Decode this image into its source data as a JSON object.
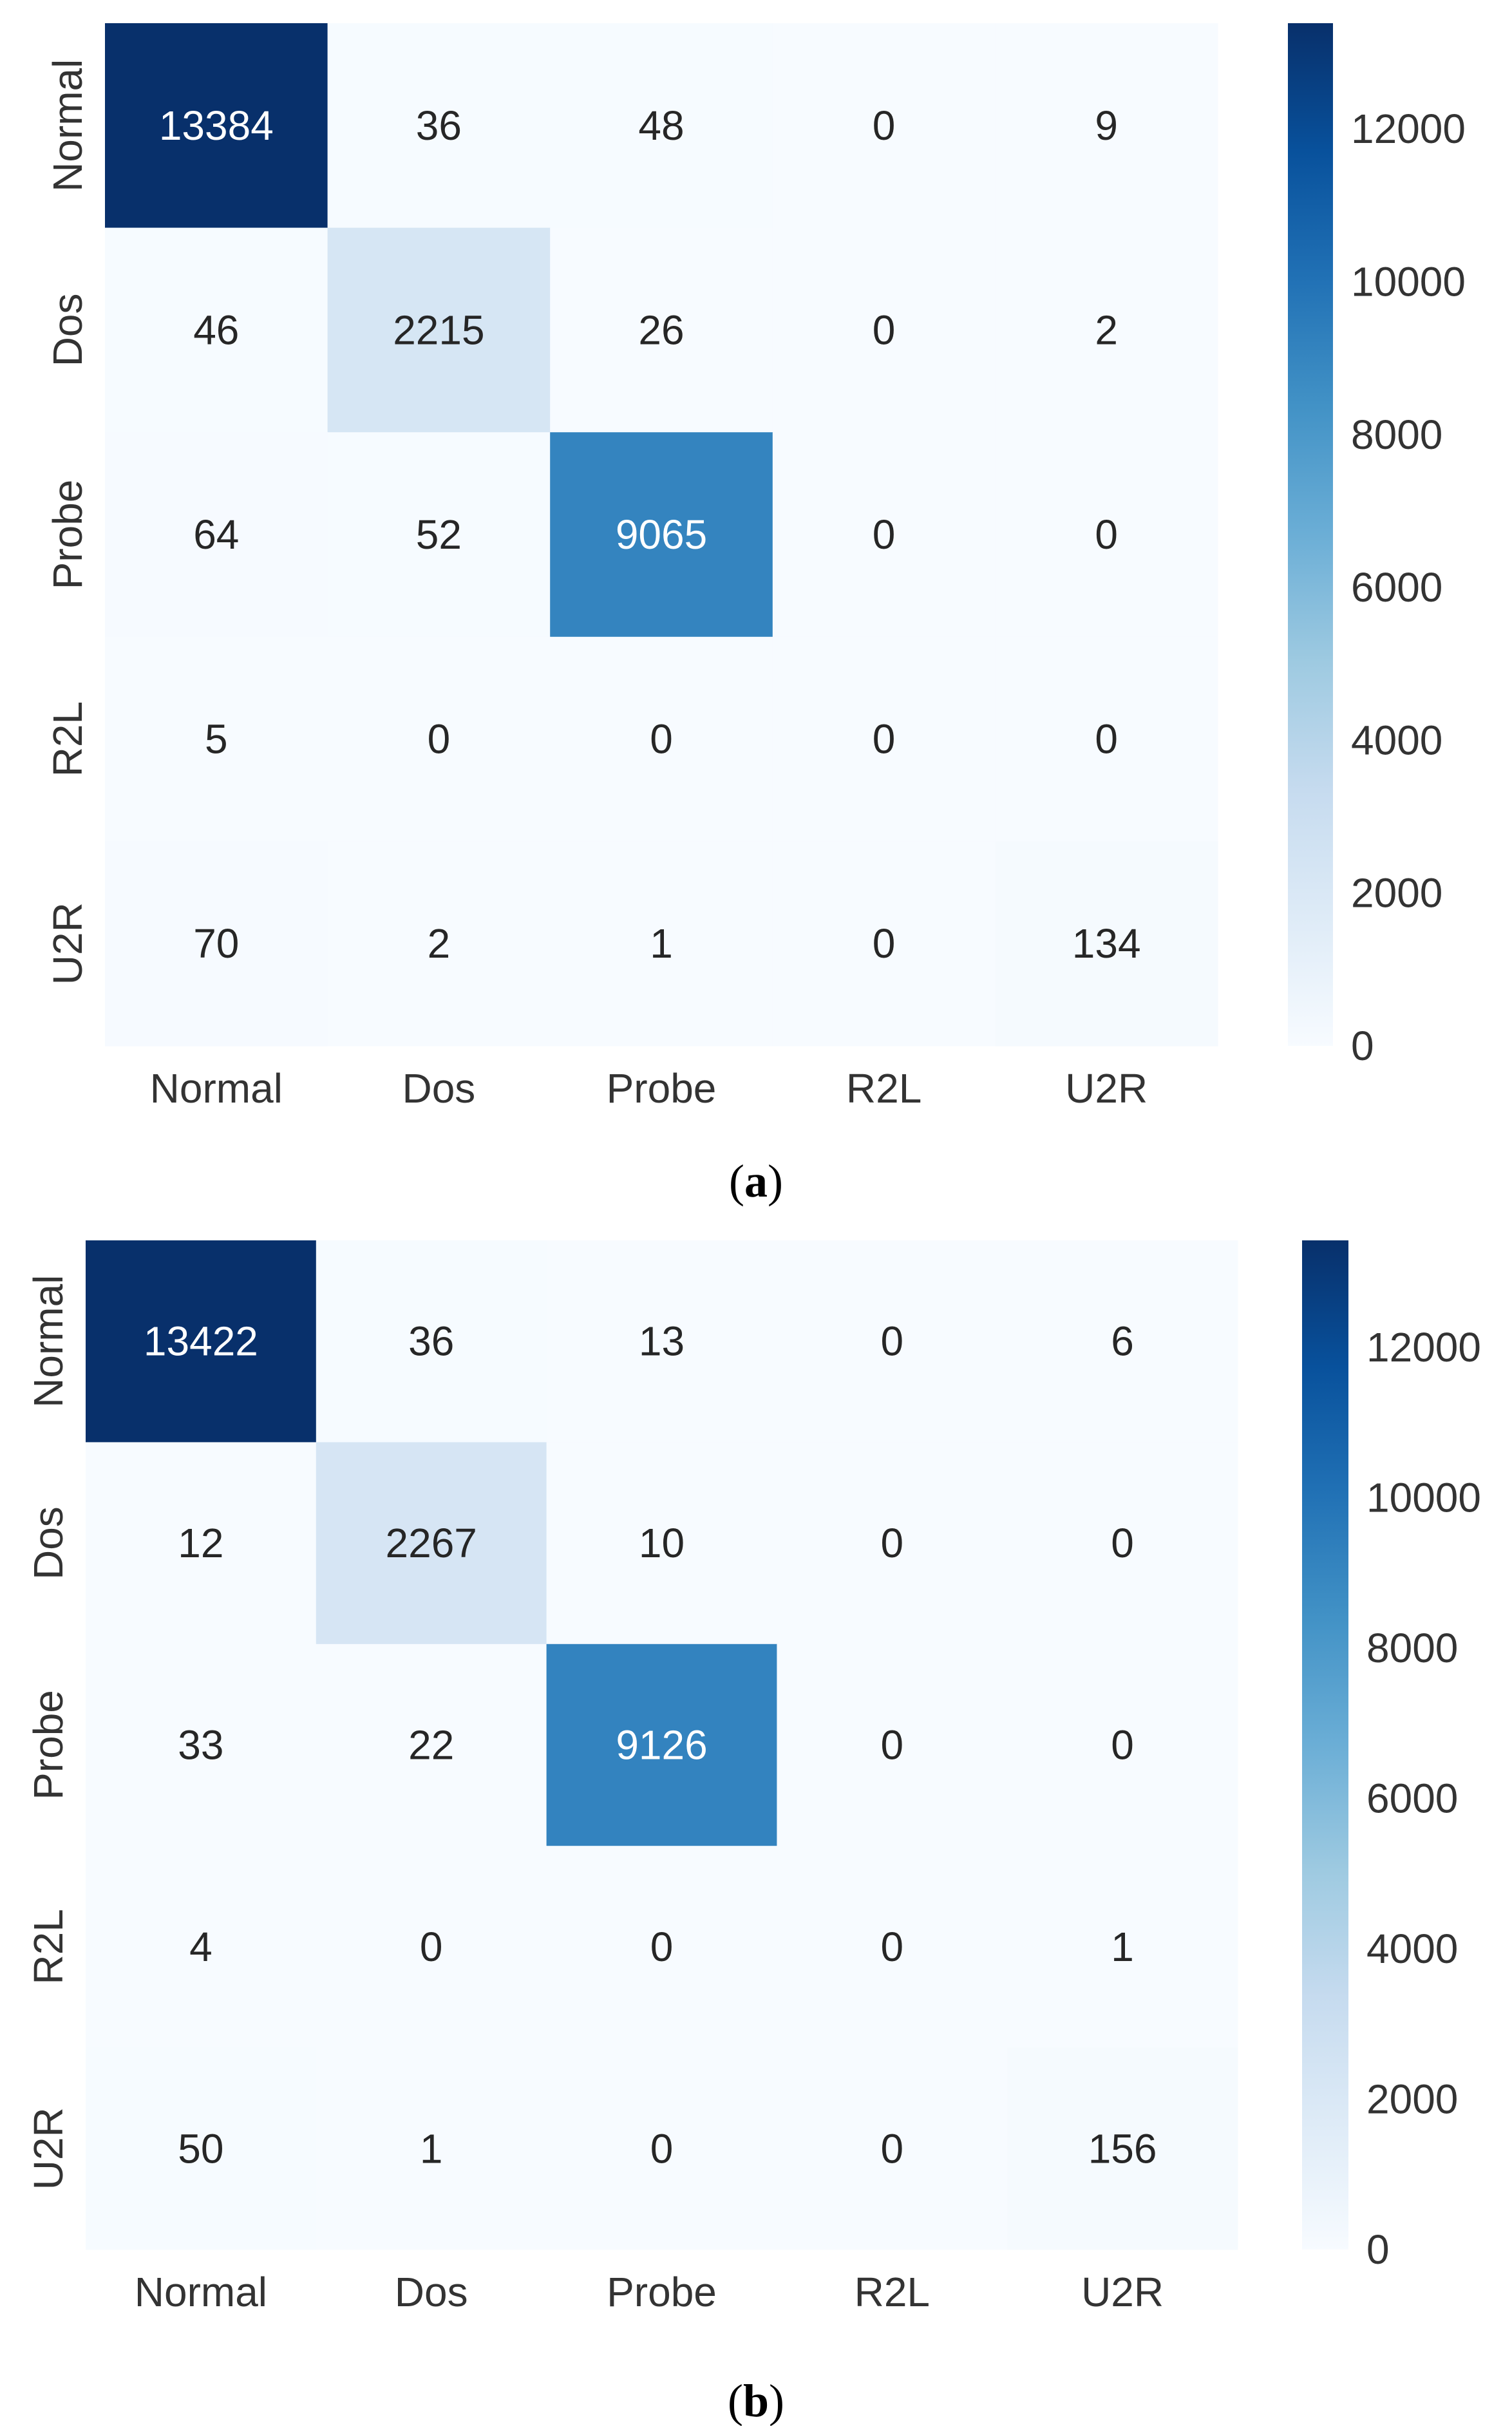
{
  "chart_data": [
    {
      "type": "heatmap",
      "caption_letter": "a",
      "row_labels": [
        "Normal",
        "Dos",
        "Probe",
        "R2L",
        "U2R"
      ],
      "col_labels": [
        "Normal",
        "Dos",
        "Probe",
        "R2L",
        "U2R"
      ],
      "values": [
        [
          13384,
          36,
          48,
          0,
          9
        ],
        [
          46,
          2215,
          26,
          0,
          2
        ],
        [
          64,
          52,
          9065,
          0,
          0
        ],
        [
          5,
          0,
          0,
          0,
          0
        ],
        [
          70,
          2,
          1,
          0,
          134
        ]
      ],
      "colorbar": {
        "vmin": 0,
        "vmax": 13384,
        "ticks": [
          "0",
          "2000",
          "4000",
          "6000",
          "8000",
          "10000",
          "12000"
        ],
        "cmap": "Blues"
      }
    },
    {
      "type": "heatmap",
      "caption_letter": "b",
      "row_labels": [
        "Normal",
        "Dos",
        "Probe",
        "R2L",
        "U2R"
      ],
      "col_labels": [
        "Normal",
        "Dos",
        "Probe",
        "R2L",
        "U2R"
      ],
      "values": [
        [
          13422,
          36,
          13,
          0,
          6
        ],
        [
          12,
          2267,
          10,
          0,
          0
        ],
        [
          33,
          22,
          9126,
          0,
          0
        ],
        [
          4,
          0,
          0,
          0,
          1
        ],
        [
          50,
          1,
          0,
          0,
          156
        ]
      ],
      "colorbar": {
        "vmin": 0,
        "vmax": 13422,
        "ticks": [
          "0",
          "2000",
          "4000",
          "6000",
          "8000",
          "10000",
          "12000"
        ],
        "cmap": "Blues"
      }
    }
  ],
  "colors": {
    "blues_low": "#f7fbff",
    "blues_stops": [
      "#f7fbff",
      "#deebf7",
      "#c6dbef",
      "#9ecae1",
      "#6baed6",
      "#4292c6",
      "#2171b5",
      "#08519c",
      "#08306b"
    ],
    "text_dark": "#262626",
    "text_light": "#ffffff"
  }
}
